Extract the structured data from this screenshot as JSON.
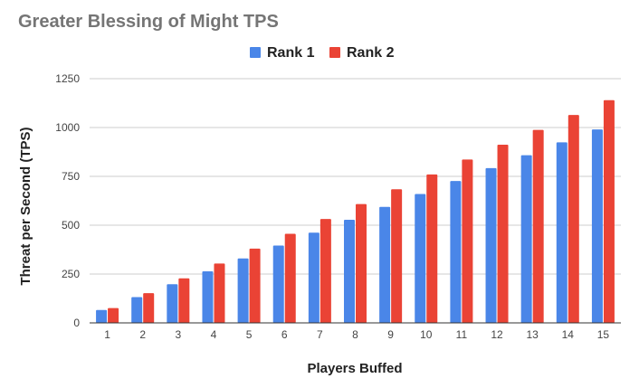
{
  "chart_data": {
    "type": "bar",
    "title": "Greater Blessing of Might TPS",
    "xlabel": "Players Buffed",
    "ylabel": "Threat per Second (TPS)",
    "ylim": [
      0,
      1250
    ],
    "yticks": [
      0,
      250,
      500,
      750,
      1000,
      1250
    ],
    "grid": true,
    "legend_position": "top",
    "categories": [
      "1",
      "2",
      "3",
      "4",
      "5",
      "6",
      "7",
      "8",
      "9",
      "10",
      "11",
      "12",
      "13",
      "14",
      "15"
    ],
    "series": [
      {
        "name": "Rank 1",
        "color": "#4a86e8",
        "values": [
          66,
          132,
          198,
          264,
          330,
          396,
          462,
          528,
          594,
          660,
          726,
          792,
          858,
          924,
          990
        ]
      },
      {
        "name": "Rank 2",
        "color": "#ea4335",
        "values": [
          76,
          152,
          228,
          304,
          380,
          456,
          532,
          608,
          684,
          760,
          836,
          912,
          988,
          1064,
          1140
        ]
      }
    ]
  }
}
